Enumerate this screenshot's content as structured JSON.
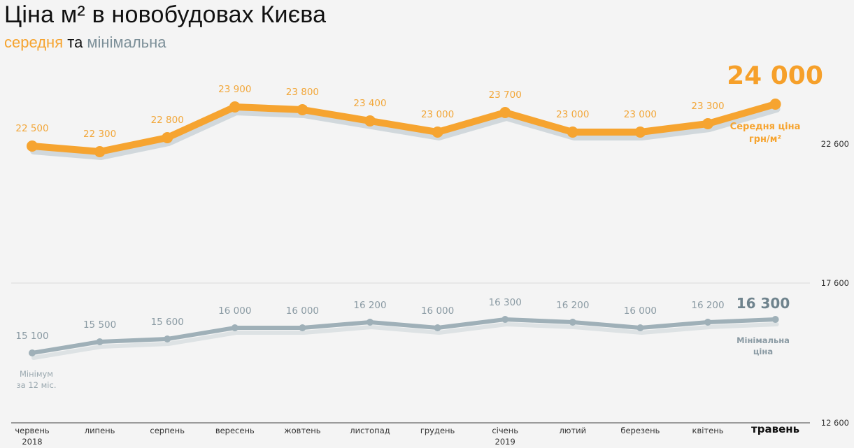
{
  "header": {
    "title": "Ціна м² в новобудовах Києва",
    "subtitle_avg": "середня",
    "subtitle_and": " та ",
    "subtitle_min": "мінімальна"
  },
  "colors": {
    "avg": "#f6a430",
    "min": "#9fb0b8",
    "shadow": "#cdd5d9",
    "background": "#f4f4f4"
  },
  "annotations": {
    "avg_latest": "24 000",
    "avg_note_line1": "Середня ціна",
    "avg_note_line2": "грн/м²",
    "min_latest": "16 300",
    "min_note_line1": "Мінімальна",
    "min_note_line2": "ціна",
    "min_left_line1": "Мінімум",
    "min_left_line2": "за 12 міс."
  },
  "chart_data": {
    "type": "line",
    "title": "Ціна м² в новобудовах Києва",
    "subtitle": "середня та мінімальна",
    "xlabel": "",
    "ylabel": "грн/м²",
    "categories": [
      "червень 2018",
      "липень",
      "серпень",
      "вересень",
      "жовтень",
      "листопад",
      "грудень",
      "січень 2019",
      "лютий",
      "березень",
      "квітень",
      "травень"
    ],
    "x_tick_lines": [
      [
        "червень",
        "2018"
      ],
      [
        "липень"
      ],
      [
        "серпень"
      ],
      [
        "вересень"
      ],
      [
        "жовтень"
      ],
      [
        "листопад"
      ],
      [
        "грудень"
      ],
      [
        "січень",
        "2019"
      ],
      [
        "лютий"
      ],
      [
        "березень"
      ],
      [
        "квітень"
      ],
      [
        "травень"
      ]
    ],
    "series": [
      {
        "name": "Середня ціна грн/м²",
        "color": "#f6a430",
        "values": [
          22500,
          22300,
          22800,
          23900,
          23800,
          23400,
          23000,
          23700,
          23000,
          23000,
          23300,
          24000
        ],
        "labels": [
          "22 500",
          "22 300",
          "22 800",
          "23 900",
          "23 800",
          "23 400",
          "23 000",
          "23 700",
          "23 000",
          "23 000",
          "23 300",
          "24 000"
        ]
      },
      {
        "name": "Мінімальна ціна",
        "color": "#9fb0b8",
        "values": [
          15100,
          15500,
          15600,
          16000,
          16000,
          16200,
          16000,
          16300,
          16200,
          16000,
          16200,
          16300
        ],
        "labels": [
          "15 100",
          "15 500",
          "15 600",
          "16 000",
          "16 000",
          "16 200",
          "16 000",
          "16 300",
          "16 200",
          "16 000",
          "16 200",
          "16 300"
        ]
      }
    ],
    "y_ticks": [
      "22 600",
      "17 600",
      "12 600"
    ],
    "ylim": [
      12600,
      24000
    ],
    "grid": true,
    "legend_position": "inline-right"
  }
}
